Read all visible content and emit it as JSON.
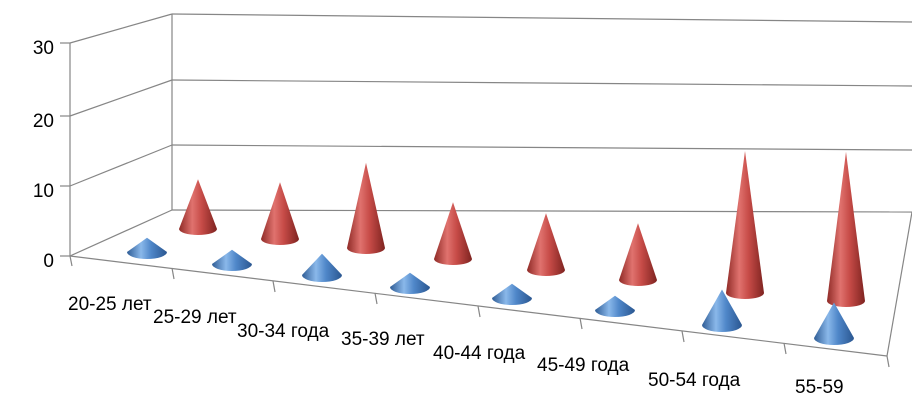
{
  "chart_data": {
    "type": "bar",
    "subtype": "3d-cone",
    "title": "",
    "xlabel": "",
    "ylabel": "",
    "categories": [
      "20-25 лет",
      "25-29 лет",
      "30-34 года",
      "35-39 лет",
      "40-44 года",
      "45-49 года",
      "50-54 года",
      "55-59"
    ],
    "ylim": [
      0,
      30
    ],
    "yticks": [
      "0",
      "10",
      "20",
      "30"
    ],
    "grid": true,
    "legend": "none",
    "series": [
      {
        "values": [
          2,
          2,
          3,
          2,
          2,
          2,
          5,
          5
        ],
        "color": "#4F81BD"
      },
      {
        "values": [
          7,
          8,
          12,
          8,
          8,
          8,
          20,
          21
        ],
        "color": "#C0504D"
      }
    ]
  }
}
